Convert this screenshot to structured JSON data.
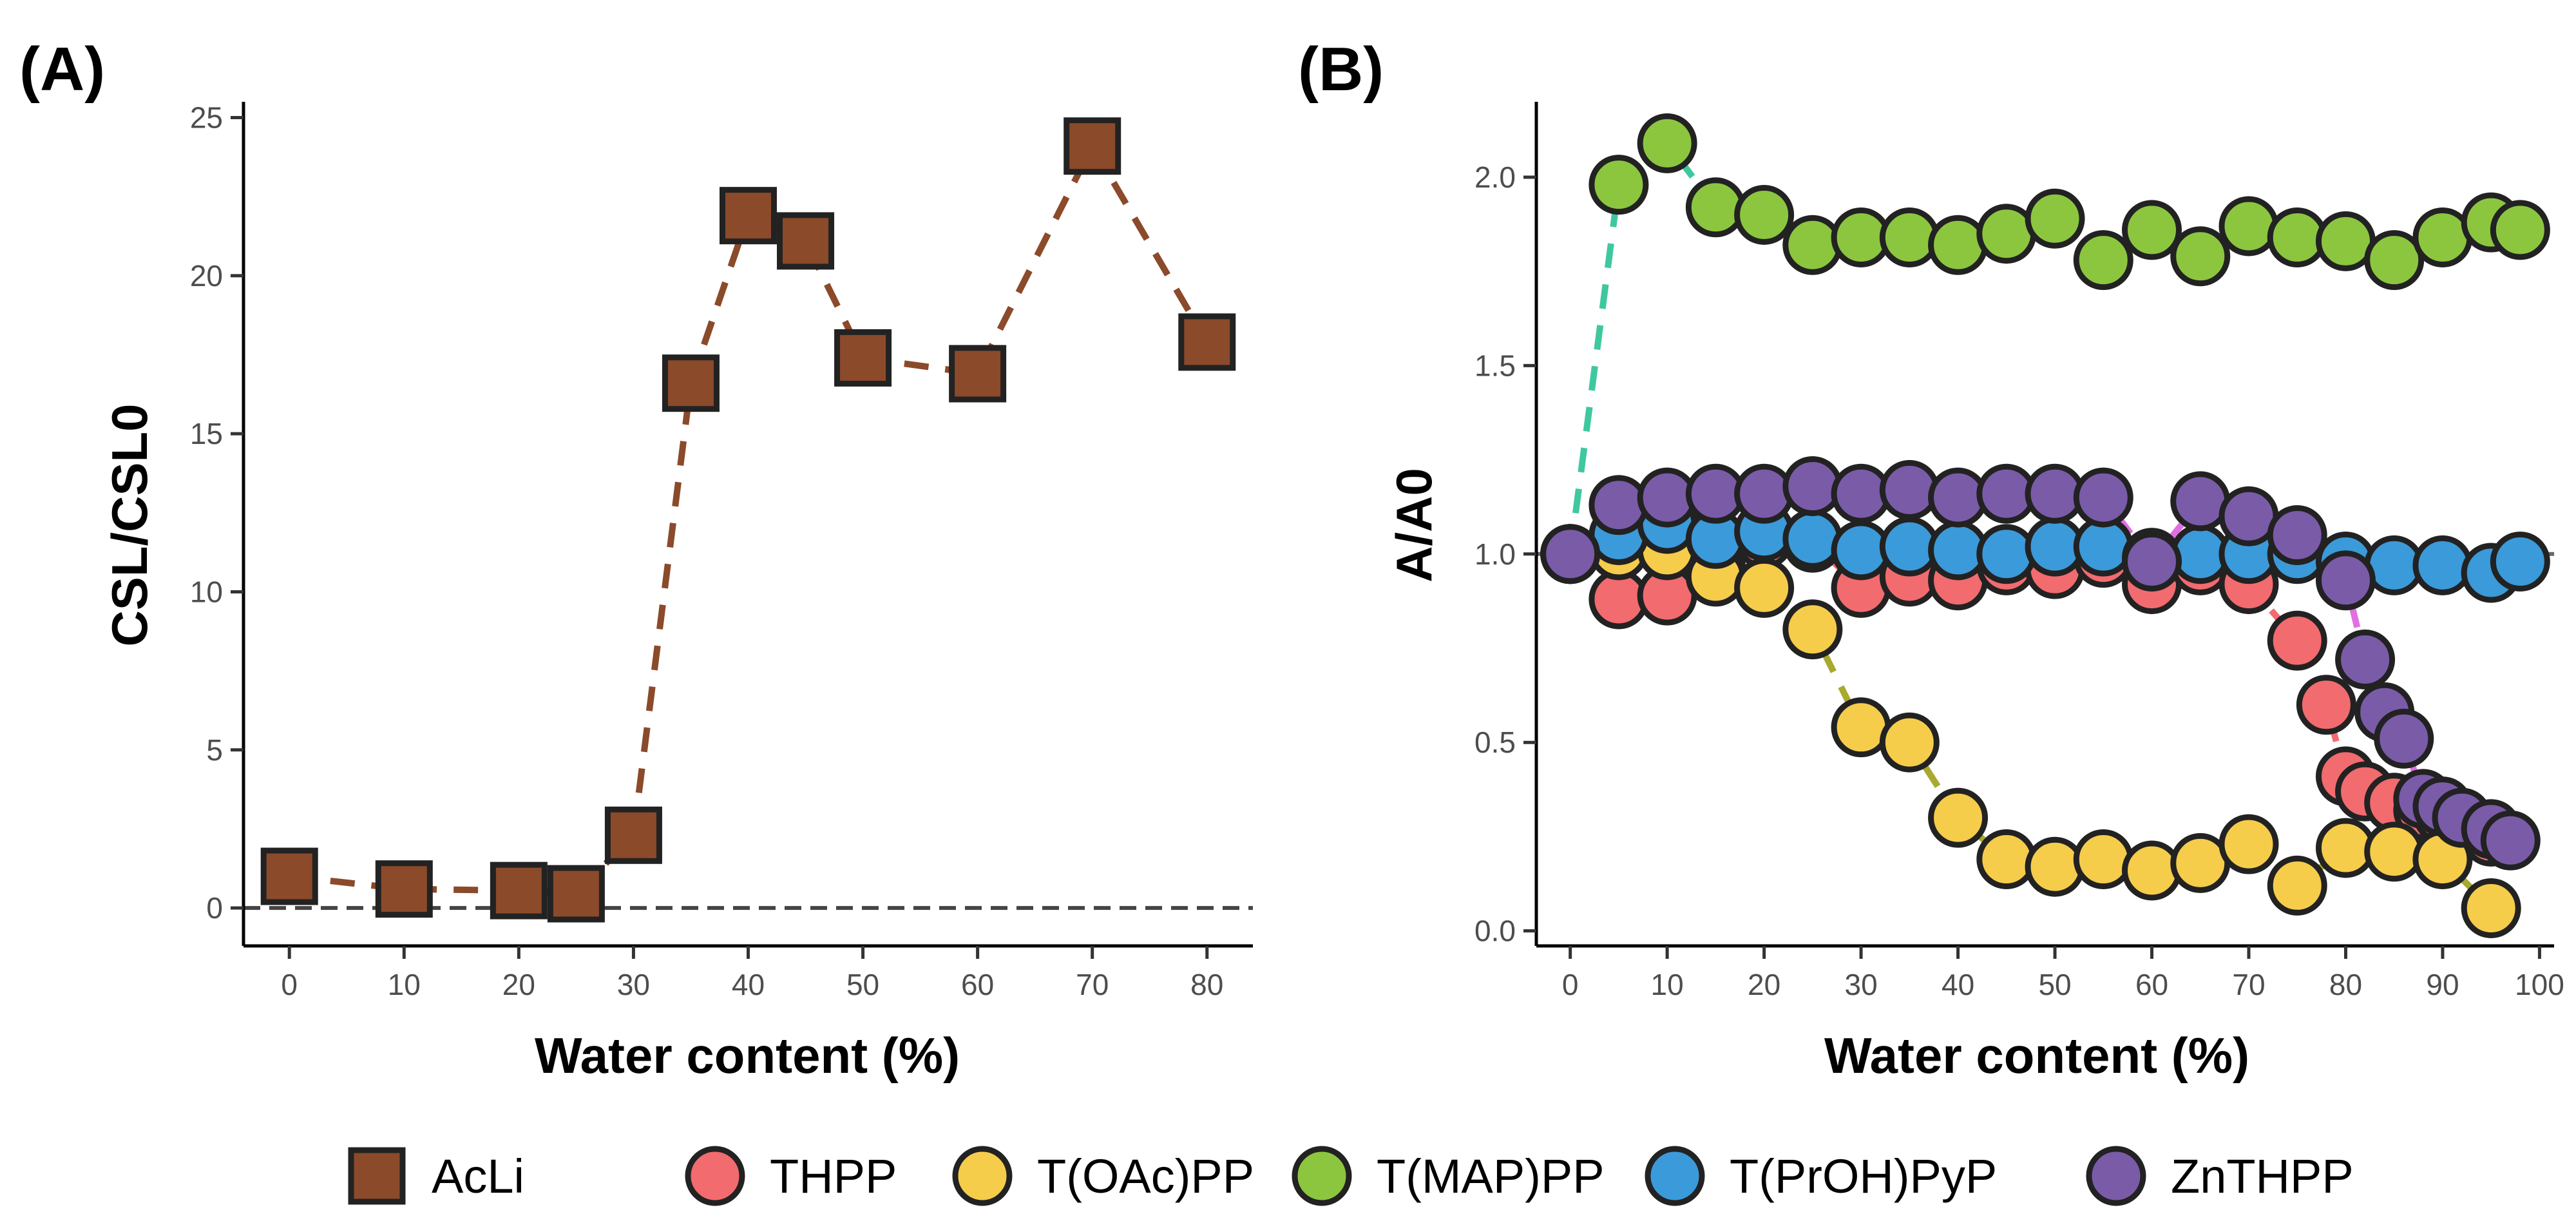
{
  "panels": {
    "A": {
      "label": "(A)"
    },
    "B": {
      "label": "(B)"
    }
  },
  "chart_data": [
    {
      "id": "A",
      "type": "line",
      "title": "(A)",
      "xlabel": "Water content (%)",
      "ylabel": "CSL/CSL0",
      "xlim": [
        -4,
        84
      ],
      "ylim": [
        -1.2,
        25.5
      ],
      "xticks": [
        0,
        10,
        20,
        30,
        40,
        50,
        60,
        70,
        80
      ],
      "yticks": [
        0,
        5,
        10,
        15,
        20,
        25
      ],
      "reference_line": 0,
      "series": [
        {
          "name": "AcLi",
          "marker": "square",
          "color": "#8B4A2A",
          "line_color": "#8B4A2A",
          "x": [
            0,
            10,
            20,
            25,
            30,
            35,
            40,
            45,
            50,
            60,
            70,
            80
          ],
          "y": [
            1.0,
            0.6,
            0.55,
            0.45,
            2.3,
            16.6,
            21.9,
            21.1,
            17.4,
            16.9,
            24.1,
            17.9
          ]
        }
      ]
    },
    {
      "id": "B",
      "type": "line",
      "title": "(B)",
      "xlabel": "Water content (%)",
      "ylabel": "A/A0",
      "xlim": [
        -3.5,
        101.5
      ],
      "ylim": [
        -0.04,
        2.2
      ],
      "xticks": [
        0,
        10,
        20,
        30,
        40,
        50,
        60,
        70,
        80,
        90,
        100
      ],
      "yticks": [
        "0.0",
        "0.5",
        "1.0",
        "1.5",
        "2.0"
      ],
      "reference_line": 1.0,
      "series": [
        {
          "name": "THPP",
          "color": "#F26B6F",
          "line_color": "#F26B6F",
          "x": [
            0,
            5,
            10,
            15,
            20,
            25,
            30,
            35,
            40,
            45,
            50,
            55,
            60,
            65,
            70,
            75,
            78,
            80,
            82,
            85,
            88,
            90,
            92,
            95
          ],
          "y": [
            1.0,
            0.88,
            0.89,
            0.97,
            1.04,
            1.03,
            0.91,
            0.94,
            0.93,
            0.97,
            0.96,
            0.99,
            0.92,
            0.97,
            0.92,
            0.77,
            0.6,
            0.41,
            0.37,
            0.34,
            0.32,
            0.31,
            0.28,
            0.25
          ]
        },
        {
          "name": "T(OAc)PP",
          "color": "#F6CC4B",
          "line_color": "#A8A92E",
          "x": [
            0,
            5,
            10,
            15,
            20,
            25,
            30,
            35,
            40,
            45,
            50,
            55,
            60,
            65,
            70,
            75,
            80,
            85,
            90,
            95
          ],
          "y": [
            1.0,
            1.01,
            1.01,
            0.94,
            0.91,
            0.8,
            0.54,
            0.5,
            0.3,
            0.19,
            0.17,
            0.19,
            0.16,
            0.18,
            0.23,
            0.12,
            0.22,
            0.21,
            0.19,
            0.06
          ]
        },
        {
          "name": "T(MAP)PP",
          "color": "#8CC63F",
          "line_color": "#3FC8A0",
          "x": [
            0,
            5,
            10,
            15,
            20,
            25,
            30,
            35,
            40,
            45,
            50,
            55,
            60,
            65,
            70,
            75,
            80,
            85,
            90,
            95,
            98
          ],
          "y": [
            1.0,
            1.98,
            2.09,
            1.92,
            1.9,
            1.82,
            1.84,
            1.84,
            1.82,
            1.85,
            1.89,
            1.78,
            1.86,
            1.79,
            1.87,
            1.84,
            1.83,
            1.78,
            1.84,
            1.88,
            1.86
          ]
        },
        {
          "name": "T(PrOH)PyP",
          "color": "#3B9AD9",
          "line_color": "#3B9AD9",
          "x": [
            0,
            5,
            10,
            15,
            20,
            25,
            30,
            35,
            40,
            45,
            50,
            55,
            60,
            65,
            70,
            75,
            80,
            85,
            90,
            95,
            98
          ],
          "y": [
            1.0,
            1.05,
            1.08,
            1.04,
            1.06,
            1.04,
            1.01,
            1.02,
            1.01,
            1.0,
            1.02,
            1.02,
            0.99,
            1.0,
            1.0,
            1.0,
            0.98,
            0.97,
            0.97,
            0.95,
            0.98
          ]
        },
        {
          "name": "ZnTHPP",
          "color": "#7A5BA8",
          "line_color": "#E16FE0",
          "x": [
            0,
            5,
            10,
            15,
            20,
            25,
            30,
            35,
            40,
            45,
            50,
            55,
            60,
            65,
            70,
            75,
            80,
            82,
            84,
            86,
            88,
            90,
            92,
            95,
            97
          ],
          "y": [
            1.0,
            1.13,
            1.15,
            1.16,
            1.16,
            1.18,
            1.16,
            1.17,
            1.15,
            1.16,
            1.16,
            1.15,
            0.98,
            1.14,
            1.1,
            1.05,
            0.93,
            0.72,
            0.58,
            0.51,
            0.35,
            0.33,
            0.3,
            0.27,
            0.24
          ]
        }
      ]
    }
  ],
  "legend": {
    "position": "bottom",
    "items": [
      {
        "name": "AcLi",
        "marker": "square",
        "color": "#8B4A2A"
      },
      {
        "name": "THPP",
        "marker": "circle",
        "color": "#F26B6F"
      },
      {
        "name": "T(OAc)PP",
        "marker": "circle",
        "color": "#F6CC4B"
      },
      {
        "name": "T(MAP)PP",
        "marker": "circle",
        "color": "#8CC63F"
      },
      {
        "name": "T(PrOH)PyP",
        "marker": "circle",
        "color": "#3B9AD9"
      },
      {
        "name": "ZnTHPP",
        "marker": "circle",
        "color": "#7A5BA8"
      }
    ]
  }
}
